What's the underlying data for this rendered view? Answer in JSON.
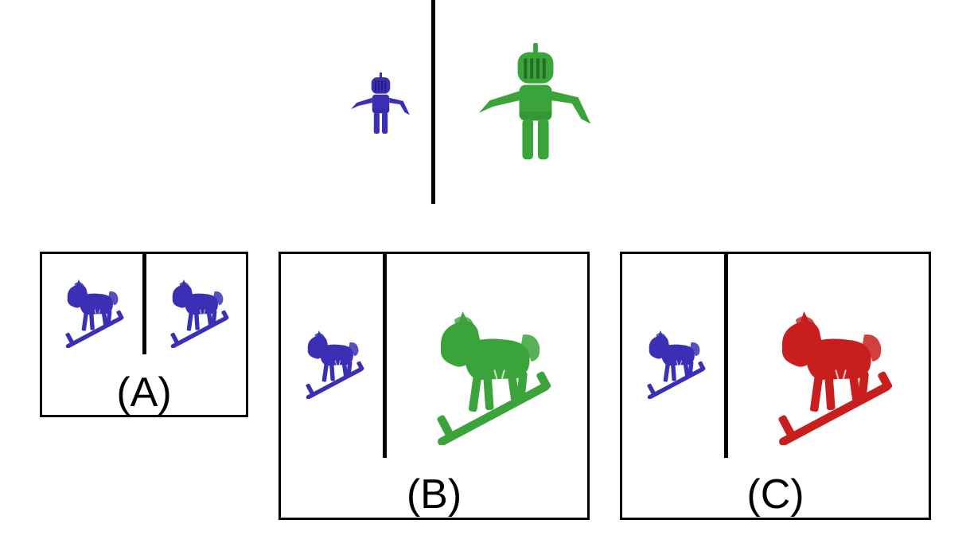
{
  "prompt": {
    "source_figure": {
      "icon": "knight-figure-icon",
      "color": "#3a2fb5",
      "size": "small"
    },
    "target_figure": {
      "icon": "knight-figure-icon",
      "color": "#3aa33a",
      "size": "large"
    }
  },
  "options": [
    {
      "label": "(A)",
      "left": {
        "icon": "rocking-horse-icon",
        "color": "#3a2fb5",
        "size": "small"
      },
      "right": {
        "icon": "rocking-horse-icon",
        "color": "#3a2fb5",
        "size": "small"
      }
    },
    {
      "label": "(B)",
      "left": {
        "icon": "rocking-horse-icon",
        "color": "#3a2fb5",
        "size": "small"
      },
      "right": {
        "icon": "rocking-horse-icon",
        "color": "#3aa33a",
        "size": "large"
      }
    },
    {
      "label": "(C)",
      "left": {
        "icon": "rocking-horse-icon",
        "color": "#3a2fb5",
        "size": "small"
      },
      "right": {
        "icon": "rocking-horse-icon",
        "color": "#c81e1e",
        "size": "large"
      }
    }
  ]
}
